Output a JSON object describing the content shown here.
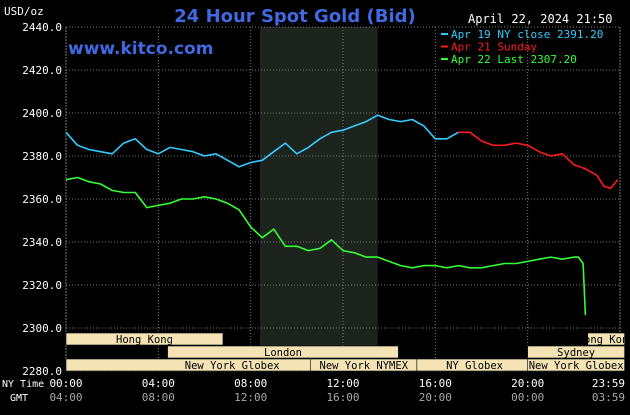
{
  "header": {
    "unit": "USD/oz",
    "title": "24 Hour Spot Gold (Bid)",
    "datetime": "April 22, 2024 21:50",
    "brand": "www.kitco.com"
  },
  "colors": {
    "background": "#000000",
    "grid": "#7a7a7a",
    "title": "#4169e1",
    "brand": "#4169e1",
    "series_apr19": "#33ccff",
    "series_apr21": "#ff1a1a",
    "series_apr22": "#33ff33",
    "session_band": "#1d231d",
    "session_box": "#f3e3b5",
    "axis_text": "#ffffff",
    "gmt_text": "#aaaaaa"
  },
  "legend": [
    {
      "label": "Apr 19 NY close 2391.20",
      "color": "#33ccff"
    },
    {
      "label": "Apr 21 Sunday",
      "color": "#ff1a1a"
    },
    {
      "label": "Apr 22 Last 2307.20",
      "color": "#33ff33"
    }
  ],
  "sessions": [
    {
      "label": "Hong Kong",
      "start": 0,
      "end": 3.4
    },
    {
      "label": "London",
      "start": 2.2,
      "end": 7.2
    },
    {
      "label": "New York Globex",
      "start": 0,
      "end": 7.2
    },
    {
      "label": "New York NYMEX",
      "start": 5.3,
      "end": 7.6
    },
    {
      "label": "NY Globex",
      "start": 7.6,
      "end": 10.1
    },
    {
      "label": "Hong Kong",
      "start": 11.3,
      "end": 12.1
    },
    {
      "label": "Sydney",
      "start": 10.0,
      "end": 12.1
    },
    {
      "label": "New York Globex",
      "start": 10.0,
      "end": 12.1
    }
  ],
  "x_axis": {
    "ny_label": "NY Time",
    "gmt_label": "GMT",
    "ny_ticks": [
      "00:00",
      "04:00",
      "08:00",
      "12:00",
      "16:00",
      "20:00",
      "23:59"
    ],
    "gmt_ticks": [
      "04:00",
      "08:00",
      "12:00",
      "16:00",
      "20:00",
      "00:00",
      "03:59"
    ]
  },
  "chart_data": {
    "type": "line",
    "title": "24 Hour Spot Gold (Bid)",
    "ylabel": "USD/oz",
    "ylim": [
      2280,
      2440
    ],
    "yticks": [
      2440,
      2420,
      2400,
      2380,
      2360,
      2340,
      2320,
      2300,
      2280
    ],
    "xlim": [
      0,
      24
    ],
    "xtick_positions": [
      0,
      4,
      8,
      12,
      16,
      20,
      24
    ],
    "grid": true,
    "legend_position": "top-right",
    "shaded_region": [
      8.4,
      13.5
    ],
    "series": [
      {
        "name": "Apr 19 NY close 2391.20",
        "color": "#33ccff",
        "x": [
          0,
          0.5,
          1,
          1.5,
          2,
          2.5,
          3,
          3.5,
          4,
          4.5,
          5,
          5.5,
          6,
          6.5,
          7,
          7.5,
          8,
          8.5,
          9,
          9.5,
          10,
          10.5,
          11,
          11.5,
          12,
          12.5,
          13,
          13.5,
          14,
          14.5,
          15,
          15.5,
          16,
          16.5,
          17
        ],
        "y": [
          2391,
          2385,
          2383,
          2382,
          2381,
          2386,
          2388,
          2383,
          2381,
          2384,
          2383,
          2382,
          2380,
          2381,
          2378,
          2375,
          2377,
          2378,
          2382,
          2386,
          2381,
          2384,
          2388,
          2391,
          2392,
          2394,
          2396,
          2399,
          2397,
          2396,
          2397,
          2394,
          2388,
          2388,
          2391
        ]
      },
      {
        "name": "Apr 21 Sunday",
        "color": "#ff1a1a",
        "x": [
          17,
          17.5,
          18,
          18.5,
          19,
          19.5,
          20,
          20.5,
          21,
          21.5,
          22,
          22.5,
          23,
          23.3,
          23.6,
          23.9
        ],
        "y": [
          2391,
          2391,
          2387,
          2385,
          2385,
          2386,
          2385,
          2382,
          2380,
          2381,
          2376,
          2374,
          2371,
          2366,
          2365,
          2369
        ]
      },
      {
        "name": "Apr 22 Last 2307.20",
        "color": "#33ff33",
        "x": [
          0,
          0.5,
          1,
          1.5,
          2,
          2.5,
          3,
          3.5,
          4,
          4.5,
          5,
          5.5,
          6,
          6.5,
          7,
          7.5,
          8,
          8.5,
          9,
          9.5,
          10,
          10.5,
          11,
          11.5,
          12,
          12.5,
          13,
          13.5,
          14,
          14.5,
          15,
          15.5,
          16,
          16.5,
          17,
          17.5,
          18,
          18.5,
          19,
          19.5,
          20,
          20.5,
          21,
          21.5,
          22,
          22.2,
          22.4,
          22.5
        ],
        "y": [
          2369,
          2370,
          2368,
          2367,
          2364,
          2363,
          2363,
          2356,
          2357,
          2358,
          2360,
          2360,
          2361,
          2360,
          2358,
          2355,
          2347,
          2342,
          2346,
          2338,
          2338,
          2336,
          2337,
          2341,
          2336,
          2335,
          2333,
          2333,
          2331,
          2329,
          2328,
          2329,
          2329,
          2328,
          2329,
          2328,
          2328,
          2329,
          2330,
          2330,
          2331,
          2332,
          2333,
          2332,
          2333,
          2333,
          2330,
          2306
        ]
      }
    ]
  }
}
